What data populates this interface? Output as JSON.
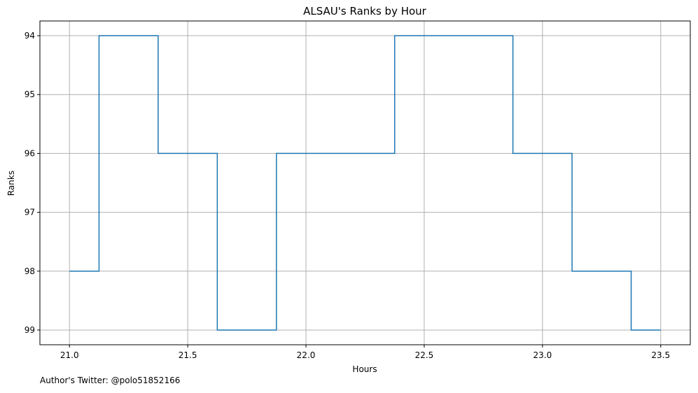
{
  "chart_data": {
    "type": "line",
    "step": "mid",
    "title": "ALSAU's Ranks by Hour",
    "xlabel": "Hours",
    "ylabel": "Ranks",
    "xlim": [
      20.875,
      23.625
    ],
    "ylim": [
      99.25,
      93.75
    ],
    "y_inverted": true,
    "grid": true,
    "x_ticks": [
      21.0,
      21.5,
      22.0,
      22.5,
      23.0,
      23.5
    ],
    "x_tick_labels": [
      "21.0",
      "21.5",
      "22.0",
      "22.5",
      "23.0",
      "23.5"
    ],
    "y_ticks": [
      94,
      95,
      96,
      97,
      98,
      99
    ],
    "y_tick_labels": [
      "94",
      "95",
      "96",
      "97",
      "98",
      "99"
    ],
    "series": [
      {
        "x": [
          21.0,
          21.25,
          21.5,
          21.75,
          22.0,
          22.25,
          22.5,
          22.75,
          23.0,
          23.25,
          23.5
        ],
        "y": [
          98,
          94,
          96,
          99,
          96,
          96,
          94,
          94,
          96,
          98,
          99
        ]
      }
    ]
  },
  "colors": {
    "line": "#1f77b4",
    "grid": "#b0b0b0",
    "axes": "#000000"
  },
  "footnote": "Author's Twitter: @polo51852166"
}
